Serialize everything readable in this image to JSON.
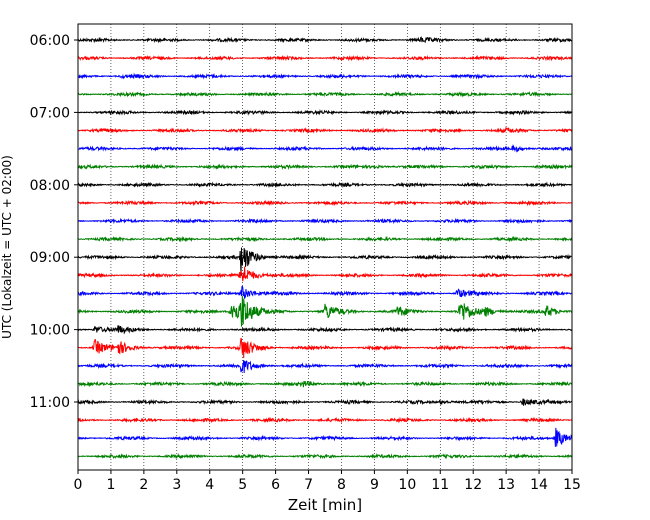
{
  "chart_data": {
    "type": "line",
    "title": "",
    "xlabel": "Zeit  [min]",
    "ylabel": "UTC (Lokalzeit = UTC + 02:00)",
    "xlim": [
      0,
      15
    ],
    "x_ticks": [
      "0",
      "1",
      "2",
      "3",
      "4",
      "5",
      "6",
      "7",
      "8",
      "9",
      "10",
      "11",
      "12",
      "13",
      "14",
      "15"
    ],
    "y_ticks": [
      {
        "label": "06:00",
        "row": 0
      },
      {
        "label": "07:00",
        "row": 4
      },
      {
        "label": "08:00",
        "row": 8
      },
      {
        "label": "09:00",
        "row": 12
      },
      {
        "label": "10:00",
        "row": 16
      },
      {
        "label": "11:00",
        "row": 20
      }
    ],
    "grid": "vertical-dotted",
    "row_colors": [
      "#000000",
      "#ff0000",
      "#0000ff",
      "#008000"
    ],
    "rows": 24,
    "start_time": "06:00",
    "row_interval_min": 15,
    "events": [
      {
        "row": 0,
        "t": 10.4,
        "amp": 0.22
      },
      {
        "row": 2,
        "t": 1.3,
        "amp": 0.15
      },
      {
        "row": 5,
        "t": 13.0,
        "amp": 0.2
      },
      {
        "row": 6,
        "t": 13.2,
        "amp": 0.35
      },
      {
        "row": 7,
        "t": 8.9,
        "amp": 0.2
      },
      {
        "row": 12,
        "t": 4.95,
        "amp": 2.2
      },
      {
        "row": 13,
        "t": 4.95,
        "amp": 1.6
      },
      {
        "row": 14,
        "t": 4.95,
        "amp": 1.0
      },
      {
        "row": 14,
        "t": 11.5,
        "amp": 0.6
      },
      {
        "row": 15,
        "t": 4.65,
        "amp": 1.8
      },
      {
        "row": 15,
        "t": 4.95,
        "amp": 2.0
      },
      {
        "row": 15,
        "t": 7.5,
        "amp": 1.0
      },
      {
        "row": 15,
        "t": 9.7,
        "amp": 0.6
      },
      {
        "row": 15,
        "t": 11.6,
        "amp": 1.6
      },
      {
        "row": 15,
        "t": 12.3,
        "amp": 0.6
      },
      {
        "row": 15,
        "t": 14.2,
        "amp": 0.7
      },
      {
        "row": 16,
        "t": 0.5,
        "amp": 0.5
      },
      {
        "row": 16,
        "t": 1.2,
        "amp": 0.4
      },
      {
        "row": 17,
        "t": 0.5,
        "amp": 1.0
      },
      {
        "row": 17,
        "t": 1.2,
        "amp": 0.8
      },
      {
        "row": 17,
        "t": 4.95,
        "amp": 1.5
      },
      {
        "row": 18,
        "t": 4.95,
        "amp": 1.0
      },
      {
        "row": 19,
        "t": 6.8,
        "amp": 0.35
      },
      {
        "row": 20,
        "t": 11.0,
        "amp": 0.3
      },
      {
        "row": 20,
        "t": 13.5,
        "amp": 0.5
      },
      {
        "row": 22,
        "t": 14.5,
        "amp": 1.3
      }
    ]
  }
}
